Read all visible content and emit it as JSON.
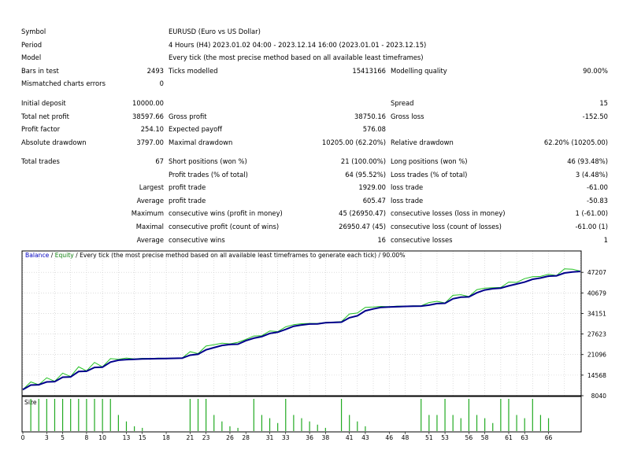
{
  "report": {
    "symbol_label": "Symbol",
    "symbol_value": "EURUSD (Euro vs US Dollar)",
    "period_label": "Period",
    "period_value": "4 Hours (H4) 2023.01.02 04:00 - 2023.12.14 16:00 (2023.01.01 - 2023.12.15)",
    "model_label": "Model",
    "model_value": "Every tick (the most precise method based on all available least timeframes)",
    "bars_label": "Bars in test",
    "bars_value": "2493",
    "ticks_label": "Ticks modelled",
    "ticks_value": "15413166",
    "quality_label": "Modelling quality",
    "quality_value": "90.00%",
    "mismatch_label": "Mismatched charts errors",
    "mismatch_value": "0",
    "deposit_label": "Initial deposit",
    "deposit_value": "10000.00",
    "spread_label": "Spread",
    "spread_value": "15",
    "netprofit_label": "Total net profit",
    "netprofit_value": "38597.66",
    "grossprofit_label": "Gross profit",
    "grossprofit_value": "38750.16",
    "grossloss_label": "Gross loss",
    "grossloss_value": "-152.50",
    "pf_label": "Profit factor",
    "pf_value": "254.10",
    "payoff_label": "Expected payoff",
    "payoff_value": "576.08",
    "absdd_label": "Absolute drawdown",
    "absdd_value": "3797.00",
    "maxdd_label": "Maximal drawdown",
    "maxdd_value": "10205.00 (62.20%)",
    "reldd_label": "Relative drawdown",
    "reldd_value": "62.20% (10205.00)",
    "trades_label": "Total trades",
    "trades_value": "67",
    "short_label": "Short positions (won %)",
    "short_value": "21 (100.00%)",
    "long_label": "Long positions (won %)",
    "long_value": "46 (93.48%)",
    "pt_label": "Profit trades (% of total)",
    "pt_value": "64 (95.52%)",
    "lt_label": "Loss trades (% of total)",
    "lt_value": "3 (4.48%)",
    "largest_label": "Largest",
    "largest_pt_label": "profit trade",
    "largest_pt_value": "1929.00",
    "largest_lt_label": "loss trade",
    "largest_lt_value": "-61.00",
    "average_label": "Average",
    "average_pt_label": "profit trade",
    "average_pt_value": "605.47",
    "average_lt_label": "loss trade",
    "average_lt_value": "-50.83",
    "maximum_label": "Maximum",
    "max_cw_label": "consecutive wins (profit in money)",
    "max_cw_value": "45 (26950.47)",
    "max_cl_label": "consecutive losses (loss in money)",
    "max_cl_value": "1 (-61.00)",
    "maximal_label": "Maximal",
    "mxl_cp_label": "consecutive profit (count of wins)",
    "mxl_cp_value": "26950.47 (45)",
    "mxl_cl_label": "consecutive loss (count of losses)",
    "mxl_cl_value": "-61.00 (1)",
    "average2_label": "Average",
    "avg_cw_label": "consecutive wins",
    "avg_cw_value": "16",
    "avg_cl_label": "consecutive losses",
    "avg_cl_value": "1"
  },
  "chart_data": {
    "type": "line",
    "title_balance": "Balance",
    "title_sep": " / ",
    "title_equity": "Equity",
    "title_rest": " / Every tick (the most precise method based on all available least timeframes to generate each tick) / 90.00%",
    "size_label": "Size",
    "ylim": [
      8040,
      51000
    ],
    "y_ticks": [
      "47207",
      "40679",
      "34151",
      "27623",
      "21096",
      "14568",
      "8040"
    ],
    "x_ticks": [
      "0",
      "3",
      "5",
      "8",
      "10",
      "13",
      "15",
      "18",
      "21",
      "23",
      "26",
      "28",
      "31",
      "33",
      "36",
      "38",
      "41",
      "43",
      "46",
      "48",
      "51",
      "53",
      "56",
      "58",
      "61",
      "63",
      "66"
    ],
    "x_max": 70,
    "colors": {
      "balance": "#00008b",
      "equity": "#22c022",
      "volume": "#22aa22",
      "border": "#000000",
      "grid": "#c8c8c8",
      "title_balance": "#0000c0",
      "title_equity": "#108010"
    },
    "series": [
      {
        "name": "Balance",
        "x": [
          0,
          1,
          2,
          3,
          4,
          5,
          6,
          7,
          8,
          9,
          10,
          11,
          12,
          13,
          14,
          15,
          16,
          17,
          18,
          19,
          20,
          21,
          22,
          23,
          24,
          25,
          26,
          27,
          28,
          29,
          30,
          31,
          32,
          33,
          34,
          35,
          36,
          37,
          38,
          39,
          40,
          41,
          42,
          43,
          44,
          45,
          46,
          47,
          48,
          49,
          50,
          51,
          52,
          53,
          54,
          55,
          56,
          57,
          58,
          59,
          60,
          61,
          62,
          63,
          64,
          65,
          66,
          67,
          68,
          69,
          70
        ],
        "values": [
          10000,
          11400,
          11500,
          12400,
          12500,
          13900,
          14000,
          15700,
          15800,
          17000,
          17100,
          18700,
          19300,
          19500,
          19600,
          19700,
          19750,
          19800,
          19850,
          19900,
          19950,
          20900,
          21200,
          22600,
          23300,
          24000,
          24300,
          24400,
          25500,
          26300,
          26800,
          27800,
          28200,
          29100,
          30100,
          30500,
          30800,
          30850,
          31200,
          31300,
          31400,
          32800,
          33400,
          35000,
          35600,
          36100,
          36200,
          36300,
          36400,
          36450,
          36500,
          36800,
          37300,
          37400,
          38800,
          39300,
          39400,
          40700,
          41600,
          42000,
          42200,
          42900,
          43500,
          44100,
          45000,
          45400,
          46000,
          46100,
          47000,
          47300,
          47500
        ]
      },
      {
        "name": "Equity",
        "x": [
          0,
          1,
          2,
          3,
          4,
          5,
          6,
          7,
          8,
          9,
          10,
          11,
          12,
          13,
          14,
          15,
          16,
          17,
          18,
          19,
          20,
          21,
          22,
          23,
          24,
          25,
          26,
          27,
          28,
          29,
          30,
          31,
          32,
          33,
          34,
          35,
          36,
          37,
          38,
          39,
          40,
          41,
          42,
          43,
          44,
          45,
          46,
          47,
          48,
          49,
          50,
          51,
          52,
          53,
          54,
          55,
          56,
          57,
          58,
          59,
          60,
          61,
          62,
          63,
          64,
          65,
          66,
          67,
          68,
          69,
          70
        ],
        "values": [
          10000,
          12400,
          11500,
          13700,
          12600,
          15200,
          14100,
          17200,
          15900,
          18600,
          17200,
          19800,
          19600,
          20000,
          19700,
          19900,
          19850,
          19950,
          19900,
          20000,
          20000,
          22000,
          21400,
          23800,
          24200,
          24700,
          24500,
          25000,
          25900,
          27000,
          27100,
          28600,
          28400,
          29900,
          30600,
          30900,
          31000,
          31000,
          31300,
          31400,
          31600,
          34000,
          34300,
          36100,
          36200,
          36400,
          36300,
          36500,
          36500,
          36600,
          36600,
          37600,
          38000,
          37500,
          39900,
          40100,
          39500,
          41700,
          42200,
          42300,
          42400,
          44100,
          44000,
          45200,
          45800,
          45900,
          46600,
          46200,
          48300,
          48200,
          47600
        ]
      }
    ],
    "volumes": [
      {
        "x": 1,
        "h": 1
      },
      {
        "x": 2,
        "h": 1
      },
      {
        "x": 3,
        "h": 1
      },
      {
        "x": 4,
        "h": 1
      },
      {
        "x": 5,
        "h": 1
      },
      {
        "x": 6,
        "h": 1
      },
      {
        "x": 7,
        "h": 1
      },
      {
        "x": 8,
        "h": 1
      },
      {
        "x": 9,
        "h": 1
      },
      {
        "x": 10,
        "h": 1
      },
      {
        "x": 11,
        "h": 1
      },
      {
        "x": 12,
        "h": 0.5
      },
      {
        "x": 13,
        "h": 0.3
      },
      {
        "x": 14,
        "h": 0.15
      },
      {
        "x": 15,
        "h": 0.1
      },
      {
        "x": 21,
        "h": 1
      },
      {
        "x": 22,
        "h": 1
      },
      {
        "x": 23,
        "h": 1
      },
      {
        "x": 24,
        "h": 0.5
      },
      {
        "x": 25,
        "h": 0.3
      },
      {
        "x": 26,
        "h": 0.15
      },
      {
        "x": 27,
        "h": 0.1
      },
      {
        "x": 29,
        "h": 1
      },
      {
        "x": 30,
        "h": 0.5
      },
      {
        "x": 31,
        "h": 0.4
      },
      {
        "x": 32,
        "h": 0.25
      },
      {
        "x": 33,
        "h": 1
      },
      {
        "x": 34,
        "h": 0.5
      },
      {
        "x": 35,
        "h": 0.4
      },
      {
        "x": 36,
        "h": 0.3
      },
      {
        "x": 37,
        "h": 0.2
      },
      {
        "x": 38,
        "h": 0.1
      },
      {
        "x": 40,
        "h": 1
      },
      {
        "x": 41,
        "h": 0.5
      },
      {
        "x": 42,
        "h": 0.3
      },
      {
        "x": 43,
        "h": 0.15
      },
      {
        "x": 50,
        "h": 1
      },
      {
        "x": 51,
        "h": 0.5
      },
      {
        "x": 52,
        "h": 0.5
      },
      {
        "x": 53,
        "h": 1
      },
      {
        "x": 54,
        "h": 0.5
      },
      {
        "x": 55,
        "h": 0.4
      },
      {
        "x": 56,
        "h": 1
      },
      {
        "x": 57,
        "h": 0.5
      },
      {
        "x": 58,
        "h": 0.4
      },
      {
        "x": 59,
        "h": 0.25
      },
      {
        "x": 60,
        "h": 1
      },
      {
        "x": 61,
        "h": 1
      },
      {
        "x": 62,
        "h": 0.5
      },
      {
        "x": 63,
        "h": 0.4
      },
      {
        "x": 64,
        "h": 1
      },
      {
        "x": 65,
        "h": 0.5
      },
      {
        "x": 66,
        "h": 0.4
      }
    ]
  }
}
